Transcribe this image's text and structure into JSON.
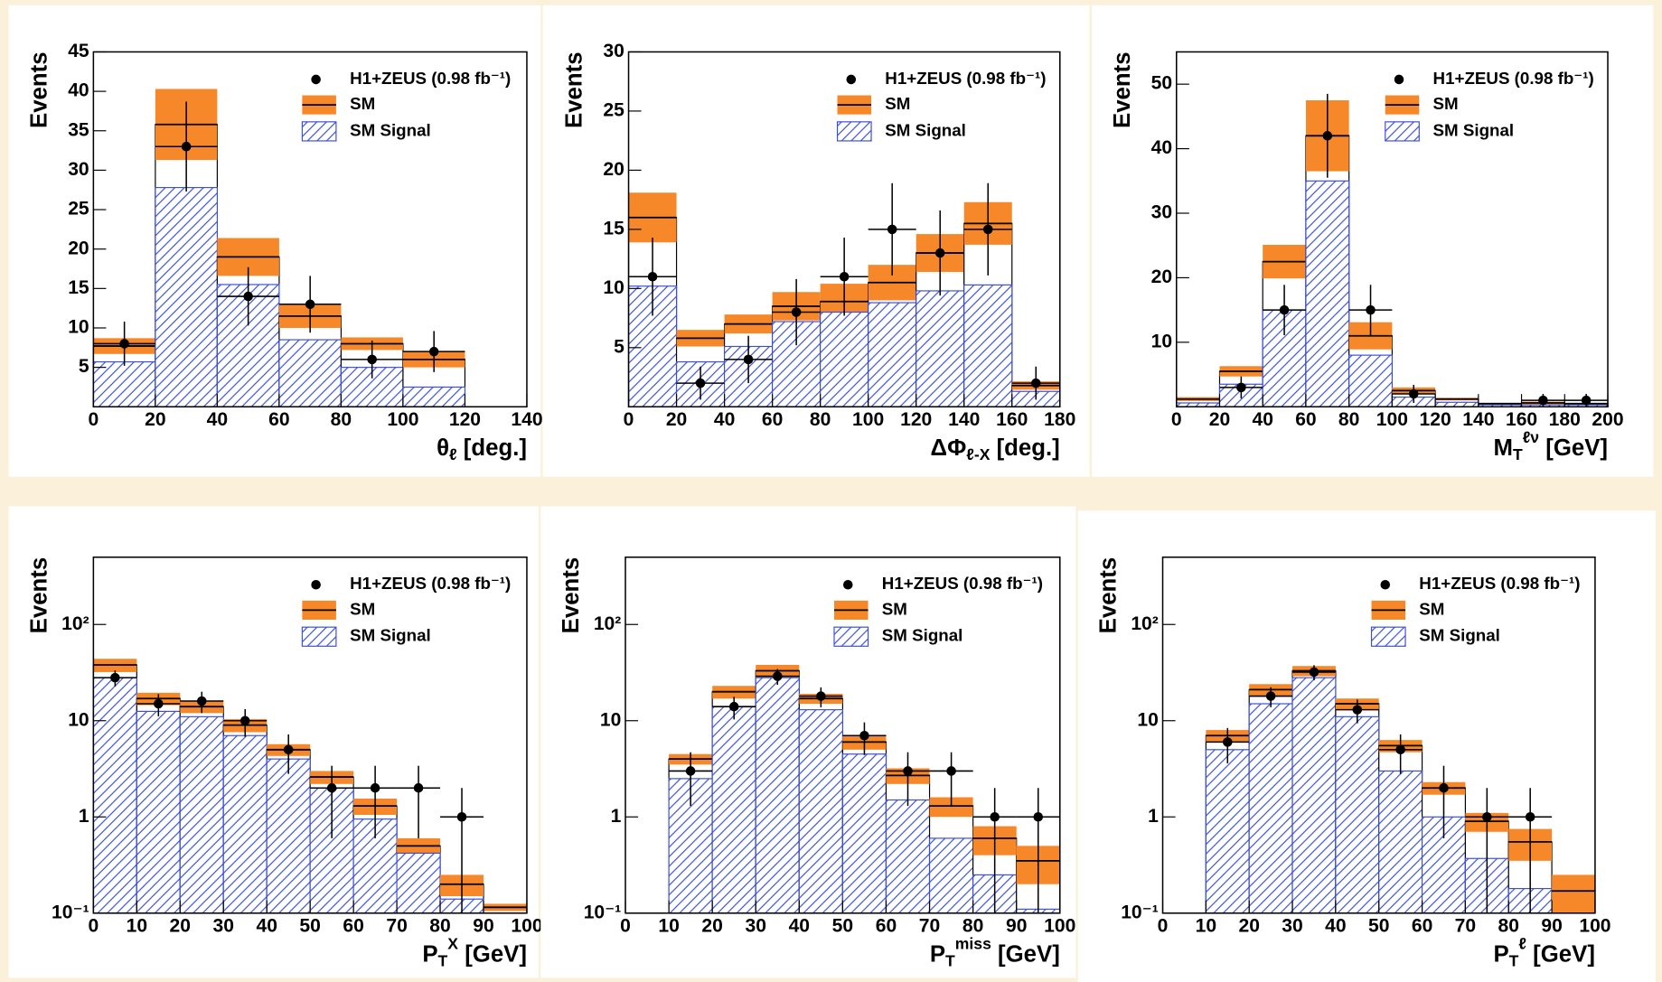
{
  "chart_data": [
    {
      "type": "histogram",
      "y_label": "Events",
      "x_label": [
        {
          "text": "θ"
        },
        {
          "text": "ℓ",
          "pos": "sub"
        },
        {
          "text": " [deg.]"
        }
      ],
      "bins": [
        0,
        20,
        40,
        60,
        80,
        100,
        120
      ],
      "xlim": [
        0,
        140
      ],
      "xticks": [
        0,
        20,
        40,
        60,
        80,
        100,
        120,
        140
      ],
      "ylim": [
        0,
        45
      ],
      "yticks": [
        5,
        10,
        15,
        20,
        25,
        30,
        35,
        40,
        45
      ],
      "log_y": false,
      "series": [
        {
          "name": "H1+ZEUS (0.98 fb⁻¹)",
          "color": "#000000",
          "values": [
            8,
            33,
            14,
            13,
            6,
            7
          ],
          "errors": [
            2.8,
            5.7,
            3.7,
            3.6,
            2.4,
            2.6
          ]
        },
        {
          "name": "SM",
          "color": "#f7882a",
          "values": [
            7.7,
            35.8,
            19,
            11.5,
            8,
            6
          ],
          "errors": [
            1.0,
            4.5,
            2.4,
            1.5,
            0.8,
            1.0
          ]
        },
        {
          "name": "SM Signal",
          "color": "#3a4fd8",
          "values": [
            5.7,
            27.8,
            15.5,
            8.5,
            5,
            2.5
          ]
        }
      ]
    },
    {
      "type": "histogram",
      "y_label": "Events",
      "x_label": [
        {
          "text": "ΔΦ"
        },
        {
          "text": "ℓ-X",
          "pos": "sub"
        },
        {
          "text": " [deg.]"
        }
      ],
      "bins": [
        0,
        20,
        40,
        60,
        80,
        100,
        120,
        140,
        160,
        180
      ],
      "xlim": [
        0,
        180
      ],
      "xticks": [
        0,
        20,
        40,
        60,
        80,
        100,
        120,
        140,
        160,
        180
      ],
      "ylim": [
        0,
        30
      ],
      "yticks": [
        5,
        10,
        15,
        20,
        25,
        30
      ],
      "log_y": false,
      "series": [
        {
          "name": "H1+ZEUS (0.98 fb⁻¹)",
          "color": "#000000",
          "values": [
            11,
            2,
            4,
            8,
            11,
            15,
            13,
            15,
            2
          ],
          "errors": [
            3.3,
            1.4,
            2,
            2.8,
            3.3,
            3.9,
            3.6,
            3.9,
            1.4
          ]
        },
        {
          "name": "SM",
          "color": "#f7882a",
          "values": [
            16,
            5.8,
            7,
            8.5,
            8.9,
            10.5,
            13,
            15.5,
            1.8
          ],
          "errors": [
            2.1,
            0.7,
            0.8,
            1.2,
            1.5,
            1.5,
            1.6,
            1.8,
            0.35
          ]
        },
        {
          "name": "SM Signal",
          "color": "#3a4fd8",
          "values": [
            10.2,
            3.8,
            5.1,
            7.2,
            8,
            8.8,
            9.8,
            10.3,
            1.3
          ]
        }
      ]
    },
    {
      "type": "histogram",
      "y_label": "Events",
      "x_label": [
        {
          "text": "M"
        },
        {
          "text": "T",
          "pos": "sub"
        },
        {
          "text": "ℓν",
          "pos": "sup"
        },
        {
          "text": " [GeV]"
        }
      ],
      "bins": [
        0,
        20,
        40,
        60,
        80,
        100,
        120,
        140,
        160,
        180,
        200
      ],
      "xlim": [
        0,
        200
      ],
      "xticks": [
        0,
        20,
        40,
        60,
        80,
        100,
        120,
        140,
        160,
        180,
        200
      ],
      "ylim": [
        0,
        55
      ],
      "yticks": [
        10,
        20,
        30,
        40,
        50
      ],
      "log_y": false,
      "series": [
        {
          "name": "H1+ZEUS (0.98 fb⁻¹)",
          "color": "#000000",
          "values": [
            null,
            3,
            15,
            42,
            15,
            2,
            null,
            null,
            1,
            1
          ],
          "errors": [
            null,
            1.7,
            3.9,
            6.5,
            3.9,
            1.4,
            null,
            null,
            1,
            1
          ]
        },
        {
          "name": "SM",
          "color": "#f7882a",
          "values": [
            1.2,
            5.5,
            22.5,
            42,
            11,
            2.5,
            1.2,
            0.5,
            0.6,
            0.5
          ],
          "errors": [
            0.3,
            0.8,
            2.6,
            5.5,
            2.1,
            0.5,
            0.2,
            0.1,
            0.2,
            0.1
          ]
        },
        {
          "name": "SM Signal",
          "color": "#3a4fd8",
          "values": [
            0.6,
            3.5,
            15,
            35,
            8,
            1.5,
            0.7,
            0.3,
            0.3,
            0.3
          ]
        }
      ]
    },
    {
      "type": "histogram",
      "y_label": "Events",
      "x_label": [
        {
          "text": "P"
        },
        {
          "text": "T",
          "pos": "sub"
        },
        {
          "text": "X",
          "pos": "sup"
        },
        {
          "text": " [GeV]"
        }
      ],
      "bins": [
        0,
        10,
        20,
        30,
        40,
        50,
        60,
        70,
        80,
        90,
        100
      ],
      "xlim": [
        0,
        100
      ],
      "xticks": [
        0,
        10,
        20,
        30,
        40,
        50,
        60,
        70,
        80,
        90,
        100
      ],
      "ylim": [
        0.1,
        500
      ],
      "yticks": [
        {
          "value": 0.1,
          "label": "10⁻¹"
        },
        1,
        10,
        {
          "value": 100,
          "label": "10²"
        }
      ],
      "log_y": true,
      "series": [
        {
          "name": "H1+ZEUS (0.98 fb⁻¹)",
          "color": "#000000",
          "values": [
            28,
            15,
            16,
            10,
            5,
            2,
            2,
            2,
            1,
            null
          ],
          "errors": [
            5.3,
            3.9,
            4,
            3.2,
            2.2,
            1.4,
            1.4,
            1.4,
            1,
            null
          ]
        },
        {
          "name": "SM",
          "color": "#f7882a",
          "values": [
            38,
            17,
            14,
            9,
            5,
            2.6,
            1.3,
            0.5,
            0.2,
            0.115
          ],
          "errors": [
            6,
            2.5,
            2,
            1.4,
            0.7,
            0.4,
            0.25,
            0.1,
            0.05,
            0.01
          ]
        },
        {
          "name": "SM Signal",
          "color": "#3a4fd8",
          "values": [
            28,
            12.5,
            11,
            7,
            4,
            2,
            0.95,
            0.42,
            0.14,
            0.1
          ]
        }
      ]
    },
    {
      "type": "histogram",
      "y_label": "Events",
      "x_label": [
        {
          "text": "P"
        },
        {
          "text": "T",
          "pos": "sub"
        },
        {
          "text": "miss",
          "pos": "sup"
        },
        {
          "text": " [GeV]"
        }
      ],
      "bins": [
        0,
        10,
        20,
        30,
        40,
        50,
        60,
        70,
        80,
        90,
        100
      ],
      "xlim": [
        0,
        100
      ],
      "xticks": [
        0,
        10,
        20,
        30,
        40,
        50,
        60,
        70,
        80,
        90,
        100
      ],
      "ylim": [
        0.1,
        500
      ],
      "yticks": [
        {
          "value": 0.1,
          "label": "10⁻¹"
        },
        1,
        10,
        {
          "value": 100,
          "label": "10²"
        }
      ],
      "log_y": true,
      "series": [
        {
          "name": "H1+ZEUS (0.98 fb⁻¹)",
          "color": "#000000",
          "values": [
            null,
            3,
            14,
            29,
            18,
            7,
            3,
            3,
            1,
            1
          ],
          "errors": [
            null,
            1.7,
            3.7,
            5.4,
            4.2,
            2.6,
            1.7,
            1.7,
            1,
            1
          ]
        },
        {
          "name": "SM",
          "color": "#f7882a",
          "values": [
            null,
            4,
            20,
            33,
            17,
            6,
            2.7,
            1.3,
            0.6,
            0.35
          ],
          "errors": [
            null,
            0.5,
            3,
            5,
            2,
            1,
            0.5,
            0.3,
            0.2,
            0.15
          ]
        },
        {
          "name": "SM Signal",
          "color": "#3a4fd8",
          "values": [
            null,
            2.5,
            14,
            28,
            13,
            4.5,
            1.5,
            0.6,
            0.25,
            0.11
          ]
        }
      ]
    },
    {
      "type": "histogram",
      "y_label": "Events",
      "x_label": [
        {
          "text": "P"
        },
        {
          "text": "T",
          "pos": "sub"
        },
        {
          "text": "ℓ",
          "pos": "sup"
        },
        {
          "text": " [GeV]"
        }
      ],
      "bins": [
        0,
        10,
        20,
        30,
        40,
        50,
        60,
        70,
        80,
        90,
        100
      ],
      "xlim": [
        0,
        100
      ],
      "xticks": [
        0,
        10,
        20,
        30,
        40,
        50,
        60,
        70,
        80,
        90,
        100
      ],
      "ylim": [
        0.1,
        500
      ],
      "yticks": [
        {
          "value": 0.1,
          "label": "10⁻¹"
        },
        1,
        10,
        {
          "value": 100,
          "label": "10²"
        }
      ],
      "log_y": true,
      "series": [
        {
          "name": "H1+ZEUS (0.98 fb⁻¹)",
          "color": "#000000",
          "values": [
            null,
            6,
            18,
            32,
            13,
            5,
            2,
            1,
            1,
            null
          ],
          "errors": [
            null,
            2.4,
            4.2,
            5.7,
            3.6,
            2.2,
            1.4,
            1,
            1,
            null
          ]
        },
        {
          "name": "SM",
          "color": "#f7882a",
          "values": [
            null,
            7,
            21,
            33,
            15,
            5.5,
            2,
            0.9,
            0.55,
            0.17
          ],
          "errors": [
            null,
            1,
            3,
            4,
            2,
            0.8,
            0.3,
            0.2,
            0.2,
            0.08
          ]
        },
        {
          "name": "SM Signal",
          "color": "#3a4fd8",
          "values": [
            null,
            5,
            15,
            28,
            11,
            3,
            1,
            0.37,
            0.18,
            null
          ]
        }
      ]
    }
  ]
}
